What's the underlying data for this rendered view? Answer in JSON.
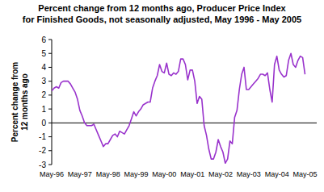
{
  "chart_data": {
    "type": "line",
    "title": "Percent change from 12 months ago, Producer Price Index\nfor Finished Goods, not seasonally adjusted, May 1996 - May 2005",
    "y_label": "Percent change from\n12 months ago",
    "categories": [
      "May-96",
      null,
      null,
      null,
      null,
      null,
      null,
      null,
      null,
      null,
      null,
      null,
      "May-97",
      null,
      null,
      null,
      null,
      null,
      null,
      null,
      null,
      null,
      null,
      null,
      "May-98",
      null,
      null,
      null,
      null,
      null,
      null,
      null,
      null,
      null,
      null,
      null,
      "May-99",
      null,
      null,
      null,
      null,
      null,
      null,
      null,
      null,
      null,
      null,
      null,
      "May-00",
      null,
      null,
      null,
      null,
      null,
      null,
      null,
      null,
      null,
      null,
      null,
      "May-01",
      null,
      null,
      null,
      null,
      null,
      null,
      null,
      null,
      null,
      null,
      null,
      "May-02",
      null,
      null,
      null,
      null,
      null,
      null,
      null,
      null,
      null,
      null,
      null,
      "May-03",
      null,
      null,
      null,
      null,
      null,
      null,
      null,
      null,
      null,
      null,
      null,
      "May-04",
      null,
      null,
      null,
      null,
      null,
      null,
      null,
      null,
      null,
      null,
      null,
      "May-05"
    ],
    "series": [
      {
        "name": "Percent change from 12 months ago",
        "color": "#9933cc",
        "values": [
          2.3,
          2.5,
          2.6,
          2.5,
          2.9,
          3.0,
          3.0,
          3.0,
          2.8,
          2.5,
          2.2,
          1.7,
          0.9,
          0.5,
          0.0,
          -0.2,
          -0.2,
          -0.2,
          -0.1,
          -0.5,
          -0.9,
          -1.3,
          -1.7,
          -1.5,
          -1.5,
          -1.2,
          -0.9,
          -0.8,
          -1.0,
          -0.6,
          -0.7,
          -0.8,
          -0.5,
          -0.2,
          0.3,
          0.8,
          0.5,
          0.8,
          1.0,
          1.3,
          1.4,
          1.5,
          1.5,
          2.5,
          3.0,
          3.4,
          4.2,
          3.7,
          3.6,
          4.3,
          3.5,
          3.4,
          3.6,
          3.5,
          3.7,
          4.6,
          4.6,
          4.2,
          3.1,
          3.8,
          3.8,
          3.0,
          1.4,
          1.9,
          1.7,
          -0.2,
          -0.9,
          -1.9,
          -2.6,
          -2.6,
          -2.1,
          -1.2,
          -1.7,
          -2.1,
          -2.9,
          -2.6,
          -1.3,
          -1.5,
          0.4,
          0.9,
          2.4,
          3.5,
          4.0,
          2.4,
          2.4,
          2.6,
          2.8,
          3.0,
          3.2,
          3.5,
          3.5,
          3.4,
          3.6,
          2.4,
          1.5,
          4.2,
          4.8,
          3.8,
          3.5,
          3.3,
          3.4,
          4.5,
          5.0,
          4.2,
          4.0,
          4.5,
          4.8,
          4.7,
          3.5
        ]
      }
    ],
    "ylim": [
      -3,
      6
    ],
    "yticks": [
      -3,
      -2,
      -1,
      0,
      1,
      2,
      3,
      4,
      5,
      6
    ],
    "grid": false
  }
}
